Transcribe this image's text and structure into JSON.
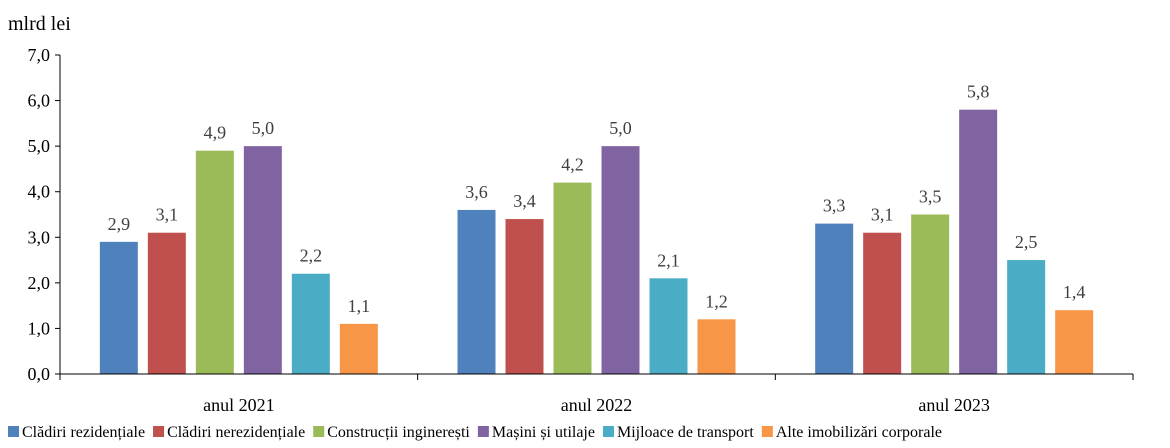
{
  "chart_data": {
    "type": "bar",
    "ylabel": "mlrd lei",
    "ylim": [
      0,
      7
    ],
    "yticks": [
      "0,0",
      "1,0",
      "2,0",
      "3,0",
      "4,0",
      "5,0",
      "6,0",
      "7,0"
    ],
    "grid": false,
    "legend_position": "bottom",
    "categories": [
      "anul 2021",
      "anul 2022",
      "anul 2023"
    ],
    "series": [
      {
        "name": "Clădiri rezidențiale",
        "color": "#4F81BD",
        "values": [
          2.9,
          3.6,
          3.3
        ],
        "labels": [
          "2,9",
          "3,6",
          "3,3"
        ]
      },
      {
        "name": "Clădiri nerezidențiale",
        "color": "#C0504D",
        "values": [
          3.1,
          3.4,
          3.1
        ],
        "labels": [
          "3,1",
          "3,4",
          "3,1"
        ]
      },
      {
        "name": "Construcții inginerești",
        "color": "#9BBB59",
        "values": [
          4.9,
          4.2,
          3.5
        ],
        "labels": [
          "4,9",
          "4,2",
          "3,5"
        ]
      },
      {
        "name": "Mașini și utilaje",
        "color": "#8064A2",
        "values": [
          5.0,
          5.0,
          5.8
        ],
        "labels": [
          "5,0",
          "5,0",
          "5,8"
        ]
      },
      {
        "name": "Mijloace de transport",
        "color": "#4BACC6",
        "values": [
          2.2,
          2.1,
          2.5
        ],
        "labels": [
          "2,2",
          "2,1",
          "2,5"
        ]
      },
      {
        "name": "Alte imobilizări corporale",
        "color": "#F79646",
        "values": [
          1.1,
          1.2,
          1.4
        ],
        "labels": [
          "1,1",
          "1,2",
          "1,4"
        ]
      }
    ]
  }
}
